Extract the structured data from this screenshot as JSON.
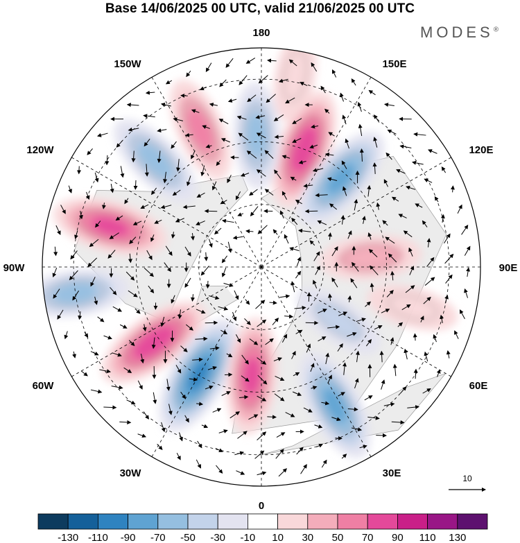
{
  "title": "Base 14/06/2025 00 UTC, valid 21/06/2025 00 UTC",
  "brand": "MODES",
  "brand_mark": "®",
  "longitude_labels": {
    "top": "180",
    "bottom": "0",
    "left": "90W",
    "right": "90E",
    "upper_left_1": "150W",
    "upper_left_2": "120W",
    "upper_right_1": "150E",
    "upper_right_2": "120E",
    "lower_left_1": "60W",
    "lower_left_2": "30W",
    "lower_right_1": "60E",
    "lower_right_2": "30E"
  },
  "reference_vector": {
    "label": "10"
  },
  "colorbar": {
    "labels": [
      "-130",
      "-110",
      "-90",
      "-70",
      "-50",
      "-30",
      "-10",
      "10",
      "30",
      "50",
      "70",
      "90",
      "110",
      "130"
    ],
    "colors": [
      "#0d3b5e",
      "#15609a",
      "#2f83c0",
      "#5fa3d2",
      "#95bfe0",
      "#c3d3ea",
      "#e3e3f0",
      "#ffffff",
      "#f9d8da",
      "#f4adbb",
      "#ef7fa4",
      "#e4499a",
      "#c91f88",
      "#991686",
      "#5d116f"
    ]
  },
  "anomaly_blobs": [
    {
      "lon": 160,
      "lat": 50,
      "value": 80
    },
    {
      "lon": 138,
      "lat": 52,
      "value": -70
    },
    {
      "lon": -178,
      "lat": 48,
      "value": -50
    },
    {
      "lon": -156,
      "lat": 42,
      "value": 50
    },
    {
      "lon": -135,
      "lat": 42,
      "value": -50
    },
    {
      "lon": -105,
      "lat": 40,
      "value": 70
    },
    {
      "lon": -82,
      "lat": 30,
      "value": -50
    },
    {
      "lon": -55,
      "lat": 48,
      "value": 80
    },
    {
      "lon": -30,
      "lat": 50,
      "value": -90
    },
    {
      "lon": -5,
      "lat": 55,
      "value": 70
    },
    {
      "lon": 28,
      "lat": 40,
      "value": -70
    },
    {
      "lon": 95,
      "lat": 55,
      "value": 40
    },
    {
      "lon": 55,
      "lat": 60,
      "value": -30
    },
    {
      "lon": 75,
      "lat": 40,
      "value": 20
    },
    {
      "lon": 170,
      "lat": 28,
      "value": 20
    }
  ]
}
